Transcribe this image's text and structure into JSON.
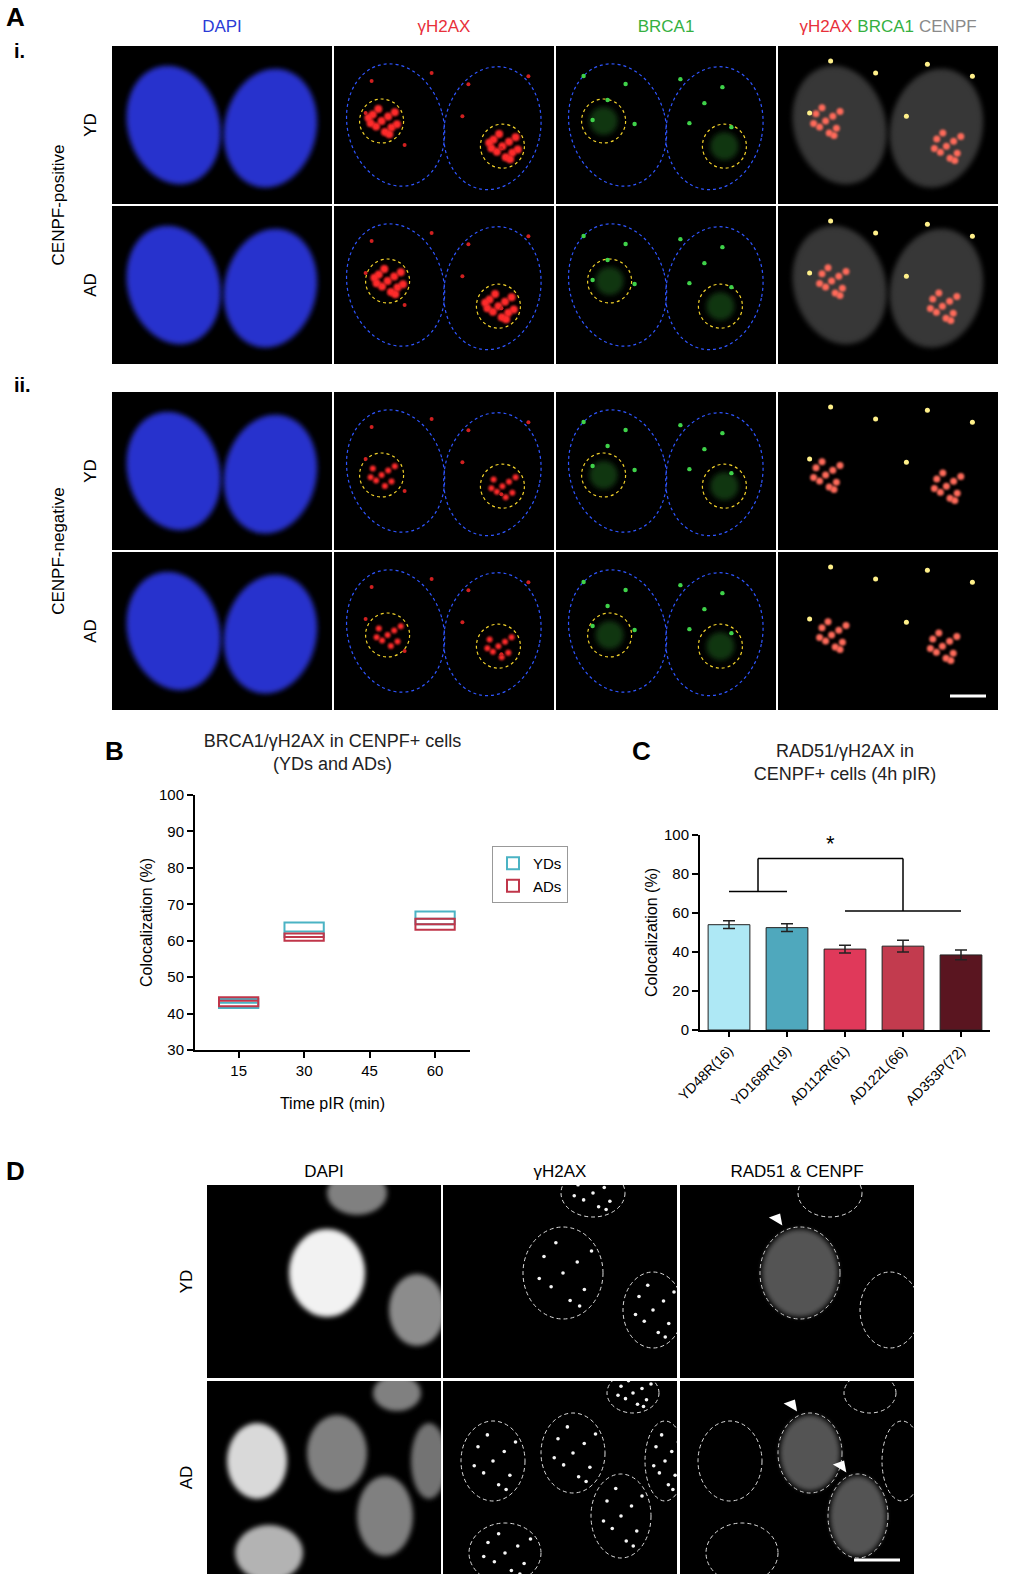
{
  "panels": {
    "A": {
      "label": "A",
      "columns": [
        {
          "text": "DAPI",
          "color": "#2b3bd6"
        },
        {
          "text": "γH2AX",
          "color": "#e8303a"
        },
        {
          "text": "BRCA1",
          "color": "#35b040"
        },
        {
          "parts": [
            {
              "text": "γH2AX",
              "color": "#e8303a"
            },
            {
              "text": "BRCA1",
              "color": "#35b040"
            },
            {
              "text": "CENPF",
              "color": "#8a8a8a"
            }
          ]
        }
      ],
      "groups": [
        {
          "numeral": "i.",
          "label": "CENPF-positive",
          "rows": [
            "YD",
            "AD"
          ]
        },
        {
          "numeral": "ii.",
          "label": "CENPF-negative",
          "rows": [
            "YD",
            "AD"
          ]
        }
      ]
    },
    "D": {
      "label": "D",
      "columns": [
        "DAPI",
        "γH2AX",
        "RAD51 & CENPF"
      ],
      "rows": [
        "YD",
        "AD"
      ]
    }
  },
  "chart_data": [
    {
      "type": "box",
      "panel_label": "B",
      "title": [
        "BRCA1/γH2AX in CENPF+ cells",
        "(YDs and ADs)"
      ],
      "x_label": "Time pIR (min)",
      "y_label": "Colocalization (%)",
      "x": [
        15,
        30,
        60
      ],
      "xlim": [
        5,
        68
      ],
      "xticks": [
        15,
        30,
        45,
        60
      ],
      "ylim": [
        30,
        100
      ],
      "yticks": [
        30,
        40,
        50,
        60,
        70,
        80,
        90,
        100
      ],
      "grid": false,
      "legend": "right",
      "series": [
        {
          "name": "YDs",
          "color": "#4bb3c4",
          "q1": [
            41.5,
            61,
            64.5
          ],
          "median": [
            43,
            62.5,
            66
          ],
          "q3": [
            44,
            65,
            68
          ]
        },
        {
          "name": "ADs",
          "color": "#c0364a",
          "q1": [
            42,
            60,
            63
          ],
          "median": [
            43.5,
            61,
            64.5
          ],
          "q3": [
            44.5,
            62,
            66
          ]
        }
      ]
    },
    {
      "type": "bar",
      "panel_label": "C",
      "title": [
        "RAD51/γH2AX in",
        "CENPF+ cells (4h pIR)"
      ],
      "y_label": "Colocalization (%)",
      "categories": [
        "YD48R(16)",
        "YD168R(19)",
        "AD112R(61)",
        "AD122L(66)",
        "AD353P(72)"
      ],
      "values": [
        54,
        52.5,
        41.5,
        43,
        38.5
      ],
      "errors": [
        2,
        2,
        2,
        3,
        2.5
      ],
      "colors": [
        "#aee8f5",
        "#4fa8bd",
        "#e0395a",
        "#c23b4e",
        "#5a1520"
      ],
      "ylim": [
        0,
        100
      ],
      "yticks": [
        0,
        20,
        40,
        60,
        80,
        100
      ],
      "grid": false,
      "significance": {
        "text": "*",
        "groups": [
          [
            0,
            1
          ],
          [
            2,
            4
          ]
        ]
      }
    }
  ]
}
